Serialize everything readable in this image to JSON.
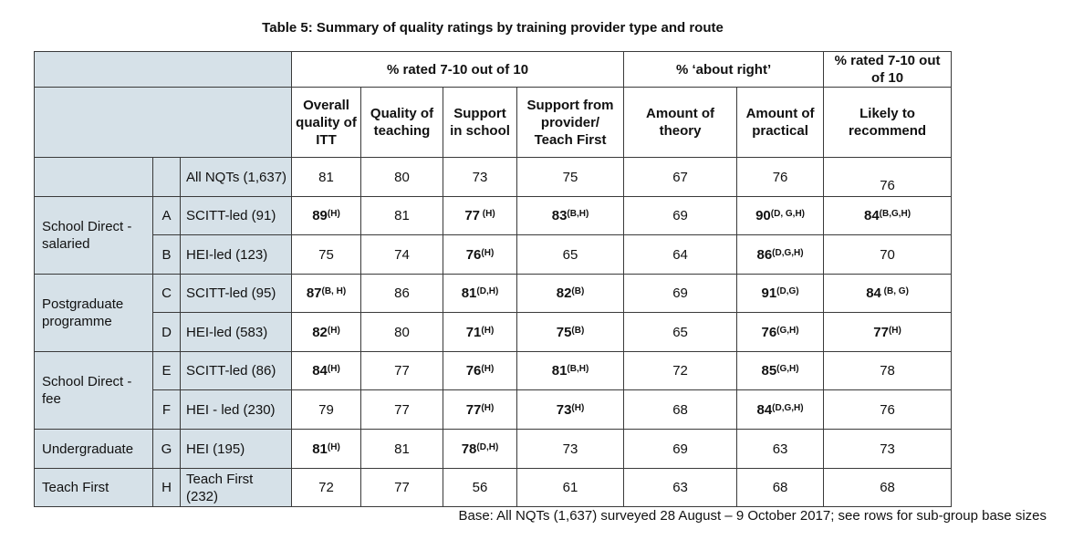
{
  "title": "Table 5: Summary of quality ratings by training provider type and route",
  "headers": {
    "group1": "% rated 7-10 out of 10",
    "group2": "% ‘about right’",
    "group3": "% rated 7-10 out of 10",
    "cols": [
      "Overall quality of ITT",
      "Quality of teaching",
      "Support in school",
      "Support from provider/ Teach First",
      "Amount of theory",
      "Amount of practical",
      "Likely to recommend"
    ]
  },
  "all_row": {
    "provider": "All NQTs (1,637)",
    "values": [
      "81",
      "80",
      "73",
      "75",
      "67",
      "76",
      "76"
    ]
  },
  "groups": [
    {
      "name": "School Direct - salaried",
      "rows": [
        {
          "letter": "A",
          "provider": "SCITT-led (91)",
          "cells": [
            {
              "v": "89",
              "s": "(H)",
              "b": true
            },
            {
              "v": "81",
              "s": "",
              "b": false
            },
            {
              "v": "77",
              "s": " (H)",
              "b": true
            },
            {
              "v": "83",
              "s": "(B,H)",
              "b": true
            },
            {
              "v": "69",
              "s": "",
              "b": false
            },
            {
              "v": "90",
              "s": "(D, G,H)",
              "b": true
            },
            {
              "v": "84",
              "s": "(B,G,H)",
              "b": true
            }
          ]
        },
        {
          "letter": "B",
          "provider": "HEI-led (123)",
          "cells": [
            {
              "v": "75",
              "s": "",
              "b": false
            },
            {
              "v": "74",
              "s": "",
              "b": false
            },
            {
              "v": "76",
              "s": "(H)",
              "b": true
            },
            {
              "v": "65",
              "s": "",
              "b": false
            },
            {
              "v": "64",
              "s": "",
              "b": false
            },
            {
              "v": "86",
              "s": "(D,G,H)",
              "b": true
            },
            {
              "v": "70",
              "s": "",
              "b": false
            }
          ]
        }
      ]
    },
    {
      "name": "Postgraduate programme",
      "rows": [
        {
          "letter": "C",
          "provider": "SCITT-led (95)",
          "cells": [
            {
              "v": "87",
              "s": "(B, H)",
              "b": true
            },
            {
              "v": "86",
              "s": "",
              "b": false
            },
            {
              "v": "81",
              "s": "(D,H)",
              "b": true
            },
            {
              "v": "82",
              "s": "(B)",
              "b": true
            },
            {
              "v": "69",
              "s": "",
              "b": false
            },
            {
              "v": "91",
              "s": "(D,G)",
              "b": true
            },
            {
              "v": "84",
              "s": " (B, G)",
              "b": true
            }
          ]
        },
        {
          "letter": "D",
          "provider": "HEI-led (583)",
          "cells": [
            {
              "v": "82",
              "s": "(H)",
              "b": true
            },
            {
              "v": "80",
              "s": "",
              "b": false
            },
            {
              "v": "71",
              "s": "(H)",
              "b": true
            },
            {
              "v": "75",
              "s": "(B)",
              "b": true
            },
            {
              "v": "65",
              "s": "",
              "b": false
            },
            {
              "v": "76",
              "s": "(G,H)",
              "b": true
            },
            {
              "v": "77",
              "s": "(H)",
              "b": true
            }
          ]
        }
      ]
    },
    {
      "name": "School Direct - fee",
      "rows": [
        {
          "letter": "E",
          "provider": "SCITT-led (86)",
          "cells": [
            {
              "v": "84",
              "s": "(H)",
              "b": true
            },
            {
              "v": "77",
              "s": "",
              "b": false
            },
            {
              "v": "76",
              "s": "(H)",
              "b": true
            },
            {
              "v": "81",
              "s": "(B,H)",
              "b": true
            },
            {
              "v": "72",
              "s": "",
              "b": false
            },
            {
              "v": "85",
              "s": "(G,H)",
              "b": true
            },
            {
              "v": "78",
              "s": "",
              "b": false
            }
          ]
        },
        {
          "letter": "F",
          "provider": "HEI - led (230)",
          "cells": [
            {
              "v": "79",
              "s": "",
              "b": false
            },
            {
              "v": "77",
              "s": "",
              "b": false
            },
            {
              "v": "77",
              "s": "(H)",
              "b": true
            },
            {
              "v": "73",
              "s": "(H)",
              "b": true
            },
            {
              "v": "68",
              "s": "",
              "b": false
            },
            {
              "v": "84",
              "s": "(D,G,H)",
              "b": true
            },
            {
              "v": "76",
              "s": "",
              "b": false
            }
          ]
        }
      ]
    },
    {
      "name": "Undergraduate",
      "rows": [
        {
          "letter": "G",
          "provider": "HEI (195)",
          "cells": [
            {
              "v": "81",
              "s": "(H)",
              "b": true
            },
            {
              "v": "81",
              "s": "",
              "b": false
            },
            {
              "v": "78",
              "s": "(D,H)",
              "b": true
            },
            {
              "v": "73",
              "s": "",
              "b": false
            },
            {
              "v": "69",
              "s": "",
              "b": false
            },
            {
              "v": "63",
              "s": "",
              "b": false
            },
            {
              "v": "73",
              "s": "",
              "b": false
            }
          ]
        }
      ]
    },
    {
      "name": "Teach First",
      "rows": [
        {
          "letter": "H",
          "provider": "Teach First (232)",
          "cells": [
            {
              "v": "72",
              "s": "",
              "b": false
            },
            {
              "v": "77",
              "s": "",
              "b": false
            },
            {
              "v": "56",
              "s": "",
              "b": false
            },
            {
              "v": "61",
              "s": "",
              "b": false
            },
            {
              "v": "63",
              "s": "",
              "b": false
            },
            {
              "v": "68",
              "s": "",
              "b": false
            },
            {
              "v": "68",
              "s": "",
              "b": false
            }
          ]
        }
      ]
    }
  ],
  "base_note": "Base: All NQTs (1,637) surveyed 28 August – 9 October 2017; see rows for sub-group base sizes"
}
